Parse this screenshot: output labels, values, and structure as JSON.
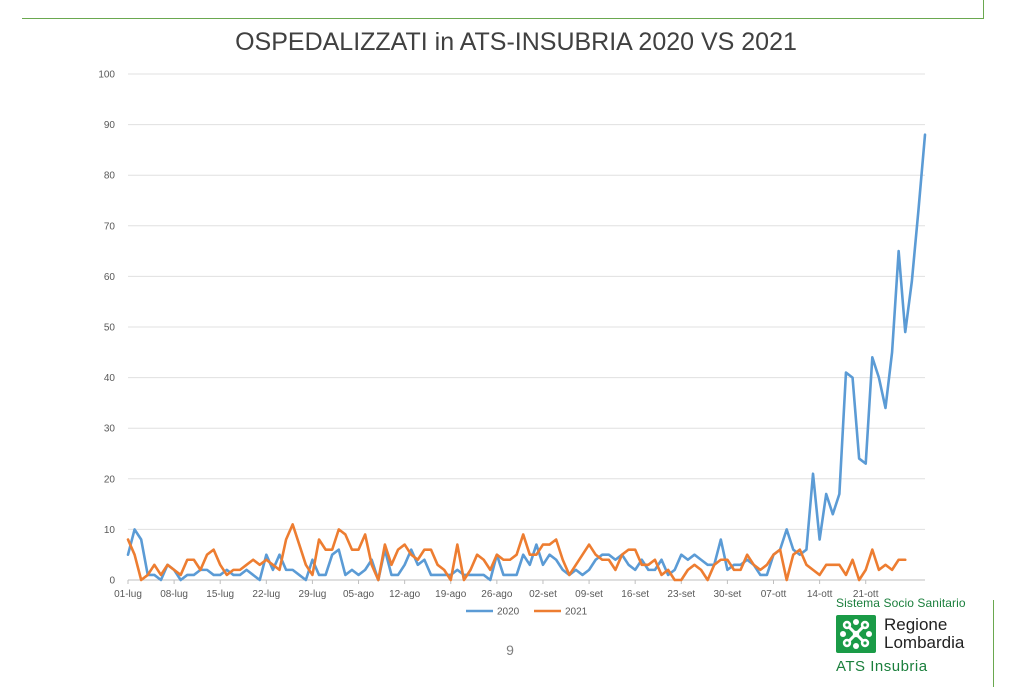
{
  "page": {
    "number": "9"
  },
  "logo": {
    "tagline": "Sistema Socio Sanitario",
    "name_line1": "Regione",
    "name_line2": "Lombardia",
    "subtitle": "ATS Insubria",
    "mark": "regione-lombardia-rosa-camuna-icon"
  },
  "chart_data": {
    "type": "line",
    "title": "OSPEDALIZZATI in ATS-INSUBRIA 2020 VS 2021",
    "xlabel": "",
    "ylabel": "",
    "ylim": [
      0,
      100
    ],
    "yticks": [
      0,
      10,
      20,
      30,
      40,
      50,
      60,
      70,
      80,
      90,
      100
    ],
    "grid": true,
    "legend_position": "bottom-center",
    "x_tick_labels": [
      "01-lug",
      "08-lug",
      "15-lug",
      "22-lug",
      "29-lug",
      "05-ago",
      "12-ago",
      "19-ago",
      "26-ago",
      "02-set",
      "09-set",
      "16-set",
      "23-set",
      "30-set",
      "07-ott",
      "14-ott",
      "21-ott"
    ],
    "x_tick_interval_days": 7,
    "series": [
      {
        "name": "2020",
        "color": "#5b9bd5",
        "values": [
          5,
          10,
          8,
          1,
          1,
          0,
          3,
          2,
          0,
          1,
          1,
          2,
          2,
          1,
          1,
          2,
          1,
          1,
          2,
          1,
          0,
          5,
          2,
          5,
          2,
          2,
          1,
          0,
          4,
          1,
          1,
          5,
          6,
          1,
          2,
          1,
          2,
          4,
          0,
          6,
          1,
          1,
          3,
          6,
          3,
          4,
          1,
          1,
          1,
          1,
          2,
          1,
          1,
          1,
          1,
          0,
          5,
          1,
          1,
          1,
          5,
          3,
          7,
          3,
          5,
          4,
          2,
          1,
          2,
          1,
          2,
          4,
          5,
          5,
          4,
          5,
          3,
          2,
          4,
          2,
          2,
          4,
          1,
          2,
          5,
          4,
          5,
          4,
          3,
          3,
          8,
          2,
          3,
          3,
          4,
          3,
          1,
          1,
          5,
          6,
          10,
          6,
          5,
          6,
          21,
          8,
          17,
          13,
          17,
          41,
          40,
          24,
          23,
          44,
          40,
          34,
          45,
          65,
          49,
          59,
          73,
          88
        ]
      },
      {
        "name": "2021",
        "color": "#ed7d31",
        "values": [
          8,
          5,
          0,
          1,
          3,
          1,
          3,
          2,
          1,
          4,
          4,
          2,
          5,
          6,
          3,
          1,
          2,
          2,
          3,
          4,
          3,
          4,
          3,
          2,
          8,
          11,
          7,
          3,
          1,
          8,
          6,
          6,
          10,
          9,
          6,
          6,
          9,
          3,
          0,
          7,
          3,
          6,
          7,
          5,
          4,
          6,
          6,
          3,
          2,
          0,
          7,
          0,
          2,
          5,
          4,
          2,
          5,
          4,
          4,
          5,
          9,
          5,
          5,
          7,
          7,
          8,
          4,
          1,
          3,
          5,
          7,
          5,
          4,
          4,
          2,
          5,
          6,
          6,
          3,
          3,
          4,
          1,
          2,
          0,
          0,
          2,
          3,
          2,
          0,
          3,
          4,
          4,
          2,
          2,
          5,
          3,
          2,
          3,
          5,
          6,
          0,
          5,
          6,
          3,
          2,
          1,
          3,
          3,
          3,
          1,
          4,
          0,
          2,
          6,
          2,
          3,
          2,
          4,
          4
        ]
      }
    ]
  }
}
